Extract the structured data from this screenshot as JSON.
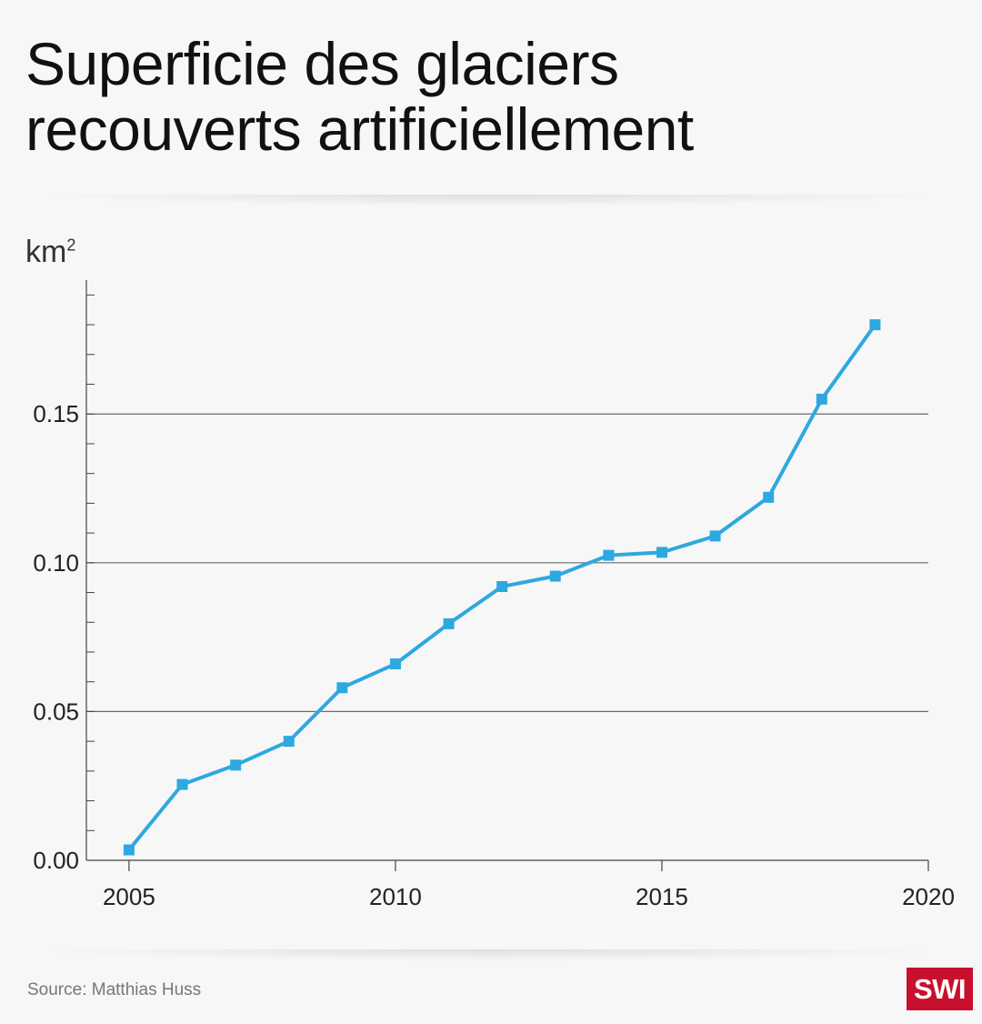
{
  "chart_data": {
    "type": "line",
    "title_lines": [
      "Superficie des glaciers",
      "recouverts artificiellement"
    ],
    "ylabel": "km",
    "ylabel_sup": "2",
    "xlim": [
      2004.2,
      2020
    ],
    "ylim": [
      0,
      0.195
    ],
    "x_ticks": [
      2005,
      2010,
      2015,
      2020
    ],
    "x_tick_labels": [
      "2005",
      "2010",
      "2015",
      "2020"
    ],
    "y_ticks": [
      0,
      0.05,
      0.1,
      0.15
    ],
    "y_tick_labels": [
      "0.00",
      "0.05",
      "0.10",
      "0.15"
    ],
    "y_minor_step": 0.01,
    "grid": "horizontal at y ticks",
    "series": [
      {
        "x": [
          2005,
          2006,
          2007,
          2008,
          2009,
          2010,
          2011,
          2012,
          2013,
          2014,
          2015,
          2016,
          2017,
          2018,
          2019
        ],
        "values": [
          0.0035,
          0.0255,
          0.032,
          0.04,
          0.058,
          0.066,
          0.0795,
          0.092,
          0.0955,
          0.1025,
          0.1035,
          0.109,
          0.122,
          0.155,
          0.18
        ],
        "color": "#2ea8e0"
      }
    ]
  },
  "source": "Source: Matthias Huss",
  "logo_text": "SWI",
  "colors": {
    "line": "#2ea8e0",
    "logo_bg": "#c8102e",
    "grid": "#6b6b6b"
  }
}
